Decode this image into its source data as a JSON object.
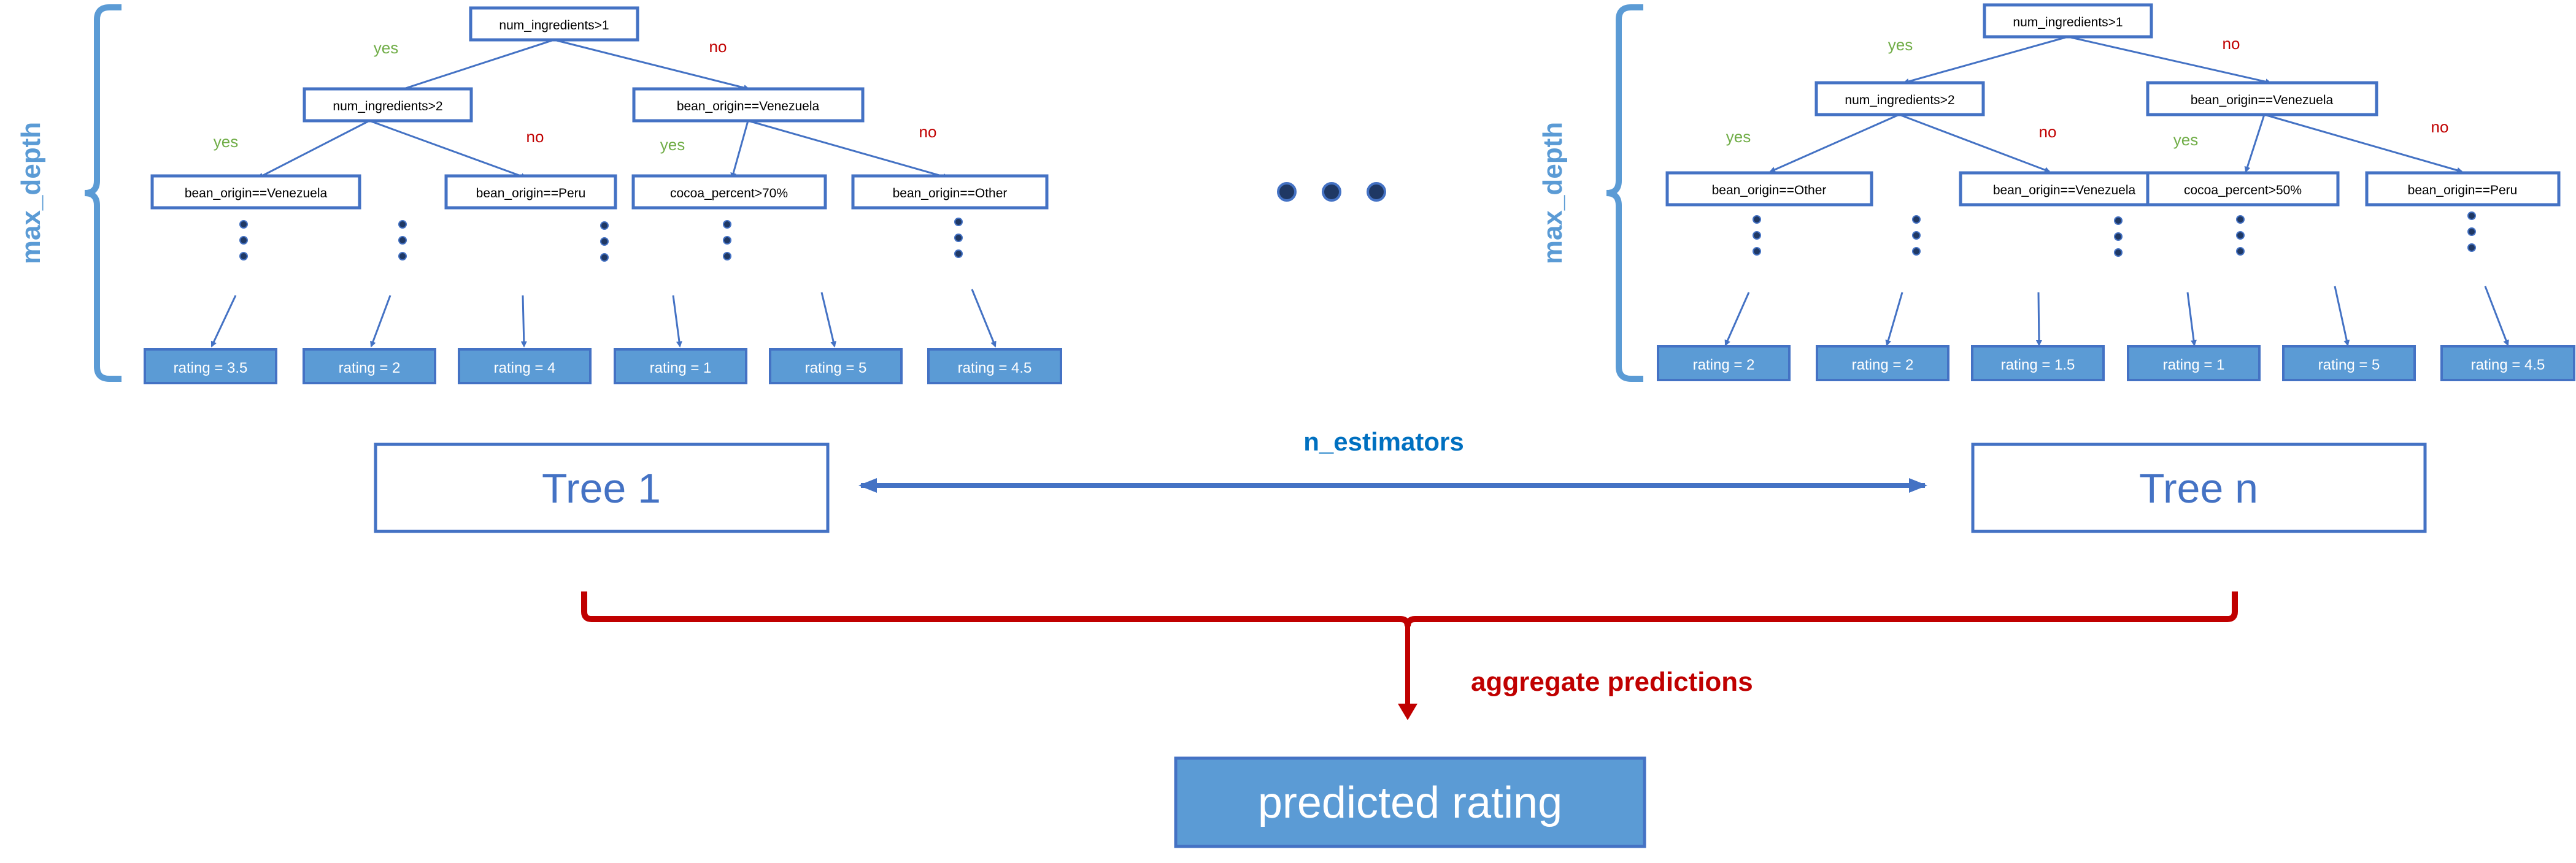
{
  "colors": {
    "blue": "#4472C4",
    "light_blue": "#5B9BD5",
    "label_blue": "#0070C0",
    "yes_green": "#70AD47",
    "no_red": "#C00000",
    "dark_red": "#C00000",
    "dot_fill": "#1F3864"
  },
  "tree1": {
    "max_depth_label": "max_depth",
    "root": "num_ingredients>1",
    "left": "num_ingredients>2",
    "right": "bean_origin==Venezuela",
    "ll": "bean_origin==Venezuela",
    "lr": "bean_origin==Peru",
    "rl": "cocoa_percent>70%",
    "rr": "bean_origin==Other",
    "yes1": "yes",
    "no1": "no",
    "yes2": "yes",
    "no2": "no",
    "yes3": "yes",
    "no3": "no",
    "leaves": [
      "rating = 3.5",
      "rating = 2",
      "rating = 4",
      "rating = 1",
      "rating = 5",
      "rating = 4.5"
    ],
    "summary": "Tree 1"
  },
  "tree2": {
    "max_depth_label": "max_depth",
    "root": "num_ingredients>1",
    "left": "num_ingredients>2",
    "right": "bean_origin==Venezuela",
    "ll": "bean_origin==Other",
    "lr": "bean_origin==Venezuela",
    "rl": "cocoa_percent>50%",
    "rr": "bean_origin==Peru",
    "yes1": "yes",
    "no1": "no",
    "yes2": "yes",
    "no2": "no",
    "yes3": "yes",
    "no3": "no",
    "leaves": [
      "rating = 2",
      "rating = 2",
      "rating = 1.5",
      "rating = 1",
      "rating = 5",
      "rating = 4.5"
    ],
    "summary": "Tree n"
  },
  "n_estimators_label": "n_estimators",
  "aggregate_label": "aggregate predictions",
  "output_label": "predicted rating"
}
